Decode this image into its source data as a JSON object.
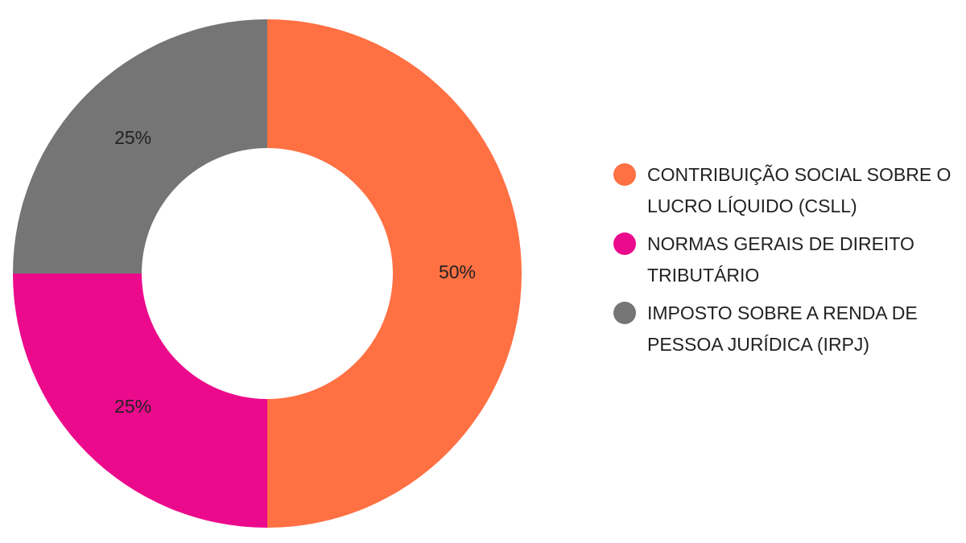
{
  "chart_data": {
    "type": "pie",
    "variant": "donut",
    "title": "",
    "legend_position": "right",
    "slices": [
      {
        "name": "CONTRIBUIÇÃO SOCIAL SOBRE O LUCRO LÍQUIDO (CSLL)",
        "value": 50,
        "label": "50%",
        "color": "#ff7043"
      },
      {
        "name": "NORMAS GERAIS DE DIREITO TRIBUTÁRIO",
        "value": 25,
        "label": "25%",
        "color": "#ec0a8c"
      },
      {
        "name": "IMPOSTO SOBRE A RENDA DE PESSOA JURÍDICA (IRPJ)",
        "value": 25,
        "label": "25%",
        "color": "#757575"
      }
    ]
  }
}
